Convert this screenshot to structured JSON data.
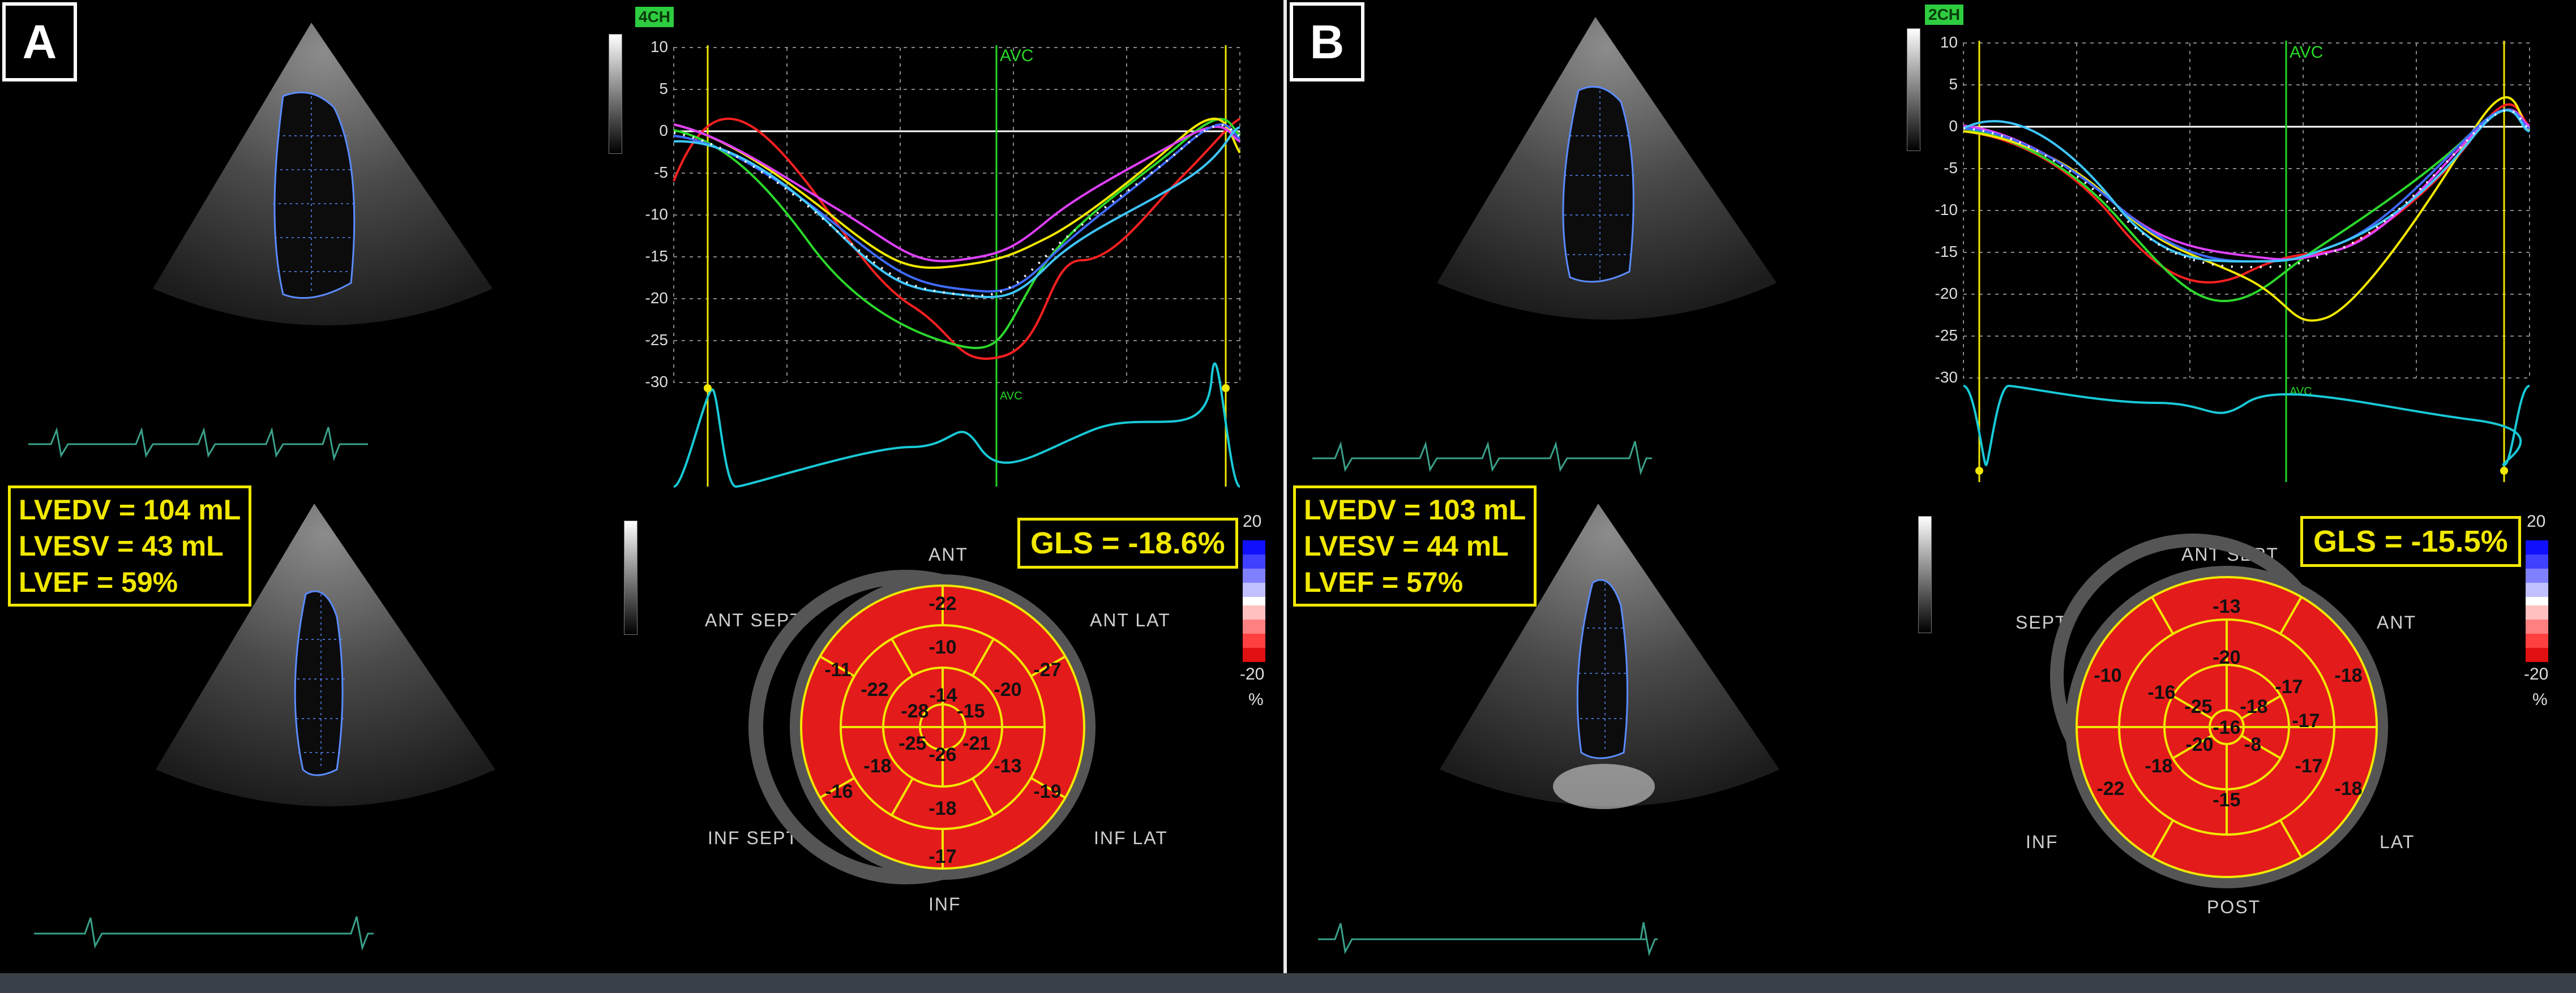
{
  "panels": [
    {
      "letter": "A",
      "view_tag": "4CH",
      "avc_label": "AVC",
      "y_ticks": [
        "10",
        "5",
        "0",
        "-5",
        "-10",
        "-15",
        "-20",
        "-25",
        "-30"
      ],
      "measurements": [
        "LVEDV = 104 mL",
        "LVESV = 43 mL",
        "LVEF = 59%"
      ],
      "gls": "GLS = -18.6%",
      "scale_top": "20",
      "scale_bottom": "-20",
      "scale_unit": "%",
      "bullseye_labels": {
        "top": "ANT",
        "top_left": "ANT  SEPT",
        "top_right": "ANT  LAT",
        "bottom_left": "INF  SEPT",
        "bottom_right": "INF  LAT",
        "bottom": "INF"
      },
      "segments": {
        "outer": [
          "-22",
          "-27",
          "-19",
          "-17",
          "-16",
          "-11"
        ],
        "mid": [
          "-10",
          "-20",
          "-13",
          "-18",
          "-18",
          "-22"
        ],
        "apical": [
          "-14",
          "-15",
          "-21",
          "-26",
          "-25",
          "-28"
        ]
      }
    },
    {
      "letter": "B",
      "view_tag": "2CH",
      "avc_label": "AVC",
      "y_ticks": [
        "10",
        "5",
        "0",
        "-5",
        "-10",
        "-15",
        "-20",
        "-25",
        "-30"
      ],
      "measurements": [
        "LVEDV = 103 mL",
        "LVESV = 44 mL",
        "LVEF = 57%"
      ],
      "gls": "GLS = -15.5%",
      "scale_top": "20",
      "scale_bottom": "-20",
      "scale_unit": "%",
      "bullseye_labels": {
        "top": "ANT  SEPT",
        "top_left": "SEPT",
        "top_right": "ANT",
        "bottom_left": "INF",
        "bottom_right": "LAT",
        "bottom": "POST"
      },
      "segments": {
        "outer": [
          "-13",
          "-18",
          "-18",
          "-17",
          "-22",
          "-10"
        ],
        "mid": [
          "-20",
          "-17",
          "-17",
          "-15",
          "-18",
          "-16"
        ],
        "apical": [
          "-18",
          "-8",
          "-20",
          "-25",
          "-16"
        ]
      }
    }
  ],
  "colors": {
    "yellow": "#f1e800",
    "green": "#27d827",
    "cyan": "#19c9d6",
    "red_map": "#e01010"
  }
}
